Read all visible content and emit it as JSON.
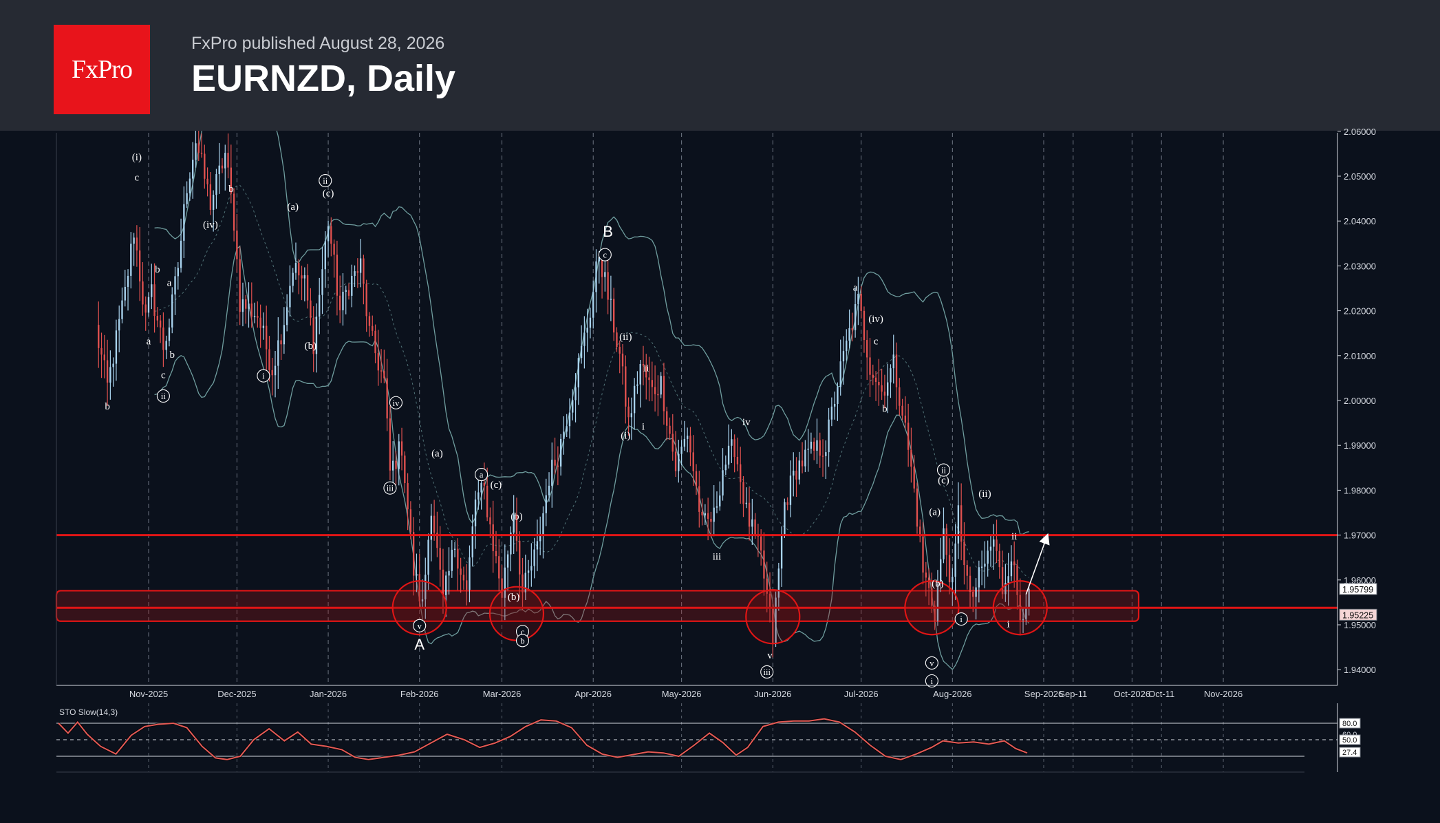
{
  "header": {
    "logo_text": "FxPro",
    "published": "FxPro published August 28, 2026",
    "title": "EURNZD, Daily"
  },
  "colors": {
    "background": "#0b111c",
    "header_bg": "#262a33",
    "brand_red": "#e8141b",
    "bull_candle": "#a9d3ee",
    "bear_candle": "#e1514f",
    "bands": "#6f9d9e",
    "level_line": "#e01515",
    "stochastic": "#e55a55"
  },
  "chart_data": [
    {
      "type": "candlestick",
      "title": "EURNZD, Daily",
      "y_range": [
        1.937,
        2.06
      ],
      "y_ticks": [
        "2.06000",
        "2.05000",
        "2.04000",
        "2.03000",
        "2.02000",
        "2.01000",
        "2.00000",
        "1.99000",
        "1.98000",
        "1.97000",
        "1.96000",
        "1.95000",
        "1.94000"
      ],
      "x_ticks": [
        "Nov-2025",
        "Dec-2025",
        "Jan-2026",
        "Feb-2026",
        "Mar-2026",
        "Apr-2026",
        "May-2026",
        "Jun-2026",
        "Jul-2026",
        "Aug-2026",
        "Sep-2026",
        "Sep-11",
        "Oct-2026",
        "Oct-11",
        "Nov-2026"
      ],
      "price_labels": [
        {
          "text": "1.95799",
          "value": 1.95799
        },
        {
          "text": "1.95225",
          "value": 1.95225
        }
      ],
      "horizontal_levels": [
        1.97,
        1.9538
      ],
      "support_zone": [
        1.9508,
        1.9576
      ],
      "close_path": [
        {
          "date": "2025-10-14",
          "close": 2.016
        },
        {
          "date": "2025-10-18",
          "close": 2.003
        },
        {
          "date": "2025-10-24",
          "close": 2.024
        },
        {
          "date": "2025-10-27",
          "close": 2.038
        },
        {
          "date": "2025-10-31",
          "close": 2.018
        },
        {
          "date": "2025-11-02",
          "close": 2.024
        },
        {
          "date": "2025-11-06",
          "close": 2.012
        },
        {
          "date": "2025-11-08",
          "close": 2.017
        },
        {
          "date": "2025-11-11",
          "close": 2.03
        },
        {
          "date": "2025-11-14",
          "close": 2.048
        },
        {
          "date": "2025-11-17",
          "close": 2.058
        },
        {
          "date": "2025-11-22",
          "close": 2.044
        },
        {
          "date": "2025-11-27",
          "close": 2.055
        },
        {
          "date": "2025-11-30",
          "close": 2.04
        },
        {
          "date": "2025-12-02",
          "close": 2.022
        },
        {
          "date": "2025-12-08",
          "close": 2.019
        },
        {
          "date": "2025-12-13",
          "close": 2.007
        },
        {
          "date": "2025-12-17",
          "close": 2.018
        },
        {
          "date": "2025-12-20",
          "close": 2.03
        },
        {
          "date": "2025-12-24",
          "close": 2.026
        },
        {
          "date": "2025-12-27",
          "close": 2.013
        },
        {
          "date": "2026-01-01",
          "close": 2.04
        },
        {
          "date": "2026-01-05",
          "close": 2.02
        },
        {
          "date": "2026-01-08",
          "close": 2.026
        },
        {
          "date": "2026-01-12",
          "close": 2.03
        },
        {
          "date": "2026-01-15",
          "close": 2.015
        },
        {
          "date": "2026-01-20",
          "close": 2.004
        },
        {
          "date": "2026-01-22",
          "close": 1.984
        },
        {
          "date": "2026-01-26",
          "close": 1.99
        },
        {
          "date": "2026-01-30",
          "close": 1.962
        },
        {
          "date": "2026-02-02",
          "close": 1.954
        },
        {
          "date": "2026-02-05",
          "close": 1.977
        },
        {
          "date": "2026-02-09",
          "close": 1.955
        },
        {
          "date": "2026-02-13",
          "close": 1.968
        },
        {
          "date": "2026-02-17",
          "close": 1.957
        },
        {
          "date": "2026-02-20",
          "close": 1.978
        },
        {
          "date": "2026-02-23",
          "close": 1.98
        },
        {
          "date": "2026-02-26",
          "close": 1.968
        },
        {
          "date": "2026-03-01",
          "close": 1.957
        },
        {
          "date": "2026-03-05",
          "close": 1.976
        },
        {
          "date": "2026-03-08",
          "close": 1.957
        },
        {
          "date": "2026-03-13",
          "close": 1.967
        },
        {
          "date": "2026-03-17",
          "close": 1.983
        },
        {
          "date": "2026-03-20",
          "close": 1.988
        },
        {
          "date": "2026-03-26",
          "close": 2.005
        },
        {
          "date": "2026-03-31",
          "close": 2.02
        },
        {
          "date": "2026-04-03",
          "close": 2.033
        },
        {
          "date": "2026-04-07",
          "close": 2.02
        },
        {
          "date": "2026-04-10",
          "close": 2.01
        },
        {
          "date": "2026-04-13",
          "close": 1.995
        },
        {
          "date": "2026-04-17",
          "close": 2.008
        },
        {
          "date": "2026-04-21",
          "close": 2.002
        },
        {
          "date": "2026-04-24",
          "close": 2.004
        },
        {
          "date": "2026-04-29",
          "close": 1.985
        },
        {
          "date": "2026-05-03",
          "close": 1.993
        },
        {
          "date": "2026-05-08",
          "close": 1.972
        },
        {
          "date": "2026-05-12",
          "close": 1.974
        },
        {
          "date": "2026-05-15",
          "close": 1.985
        },
        {
          "date": "2026-05-19",
          "close": 1.99
        },
        {
          "date": "2026-05-23",
          "close": 1.975
        },
        {
          "date": "2026-05-28",
          "close": 1.965
        },
        {
          "date": "2026-06-01",
          "close": 1.947
        },
        {
          "date": "2026-06-05",
          "close": 1.977
        },
        {
          "date": "2026-06-09",
          "close": 1.985
        },
        {
          "date": "2026-06-13",
          "close": 1.988
        },
        {
          "date": "2026-06-19",
          "close": 1.99
        },
        {
          "date": "2026-06-23",
          "close": 2.004
        },
        {
          "date": "2026-06-27",
          "close": 2.015
        },
        {
          "date": "2026-06-30",
          "close": 2.022
        },
        {
          "date": "2026-07-04",
          "close": 2.008
        },
        {
          "date": "2026-07-08",
          "close": 2.002
        },
        {
          "date": "2026-07-12",
          "close": 2.008
        },
        {
          "date": "2026-07-15",
          "close": 1.998
        },
        {
          "date": "2026-07-19",
          "close": 1.98
        },
        {
          "date": "2026-07-22",
          "close": 1.962
        },
        {
          "date": "2026-07-26",
          "close": 1.953
        },
        {
          "date": "2026-07-29",
          "close": 1.97
        },
        {
          "date": "2026-08-01",
          "close": 1.958
        },
        {
          "date": "2026-08-03",
          "close": 1.975
        },
        {
          "date": "2026-08-07",
          "close": 1.955
        },
        {
          "date": "2026-08-11",
          "close": 1.962
        },
        {
          "date": "2026-08-15",
          "close": 1.969
        },
        {
          "date": "2026-08-18",
          "close": 1.958
        },
        {
          "date": "2026-08-21",
          "close": 1.966
        },
        {
          "date": "2026-08-24",
          "close": 1.952
        },
        {
          "date": "2026-08-27",
          "close": 1.958
        }
      ],
      "wave_labels": [
        {
          "text": "b",
          "date": "2025-10-18",
          "price": 1.998
        },
        {
          "text": "(i)",
          "date": "2025-10-28",
          "price": 2.0535
        },
        {
          "text": "c",
          "date": "2025-10-28",
          "price": 2.049
        },
        {
          "text": "b",
          "date": "2025-11-04",
          "price": 2.0285
        },
        {
          "text": "a",
          "date": "2025-11-01",
          "price": 2.0125
        },
        {
          "text": "a",
          "date": "2025-11-08",
          "price": 2.0255
        },
        {
          "text": "b",
          "date": "2025-11-09",
          "price": 2.0095
        },
        {
          "text": "c",
          "date": "2025-11-06",
          "price": 2.005
        },
        {
          "text": "(iv)",
          "date": "2025-11-22",
          "price": 2.0385
        },
        {
          "text": "b",
          "date": "2025-11-29",
          "price": 2.0465
        },
        {
          "text": "(a)",
          "date": "2025-12-20",
          "price": 2.0425
        },
        {
          "text": "(c)",
          "date": "2026-01-01",
          "price": 2.0455
        },
        {
          "text": "(b)",
          "date": "2025-12-26",
          "price": 2.0115
        },
        {
          "text": "(a)",
          "date": "2026-02-07",
          "price": 1.9875
        },
        {
          "text": "(c)",
          "date": "2026-02-27",
          "price": 1.9805
        },
        {
          "text": "(b)",
          "date": "2026-03-06",
          "price": 1.9735
        },
        {
          "text": "(b)",
          "date": "2026-03-05",
          "price": 1.9555
        },
        {
          "text": "B",
          "date": "2026-04-06",
          "price": 2.0365
        },
        {
          "text": "(ii)",
          "date": "2026-04-12",
          "price": 2.0135
        },
        {
          "text": "ii",
          "date": "2026-04-19",
          "price": 2.0065
        },
        {
          "text": "(i)",
          "date": "2026-04-12",
          "price": 1.9915
        },
        {
          "text": "i",
          "date": "2026-04-18",
          "price": 1.9935
        },
        {
          "text": "iii",
          "date": "2026-05-13",
          "price": 1.9645
        },
        {
          "text": "iv",
          "date": "2026-05-23",
          "price": 1.9945
        },
        {
          "text": "v",
          "date": "2026-05-31",
          "price": 1.9425
        },
        {
          "text": "a",
          "date": "2026-06-29",
          "price": 2.0245
        },
        {
          "text": "(iv)",
          "date": "2026-07-06",
          "price": 2.0175
        },
        {
          "text": "c",
          "date": "2026-07-06",
          "price": 2.0125
        },
        {
          "text": "b",
          "date": "2026-07-09",
          "price": 1.9975
        },
        {
          "text": "(a)",
          "date": "2026-07-26",
          "price": 1.9745
        },
        {
          "text": "(c)",
          "date": "2026-07-29",
          "price": 1.9815
        },
        {
          "text": "(b)",
          "date": "2026-07-27",
          "price": 1.9585
        },
        {
          "text": "(ii)",
          "date": "2026-08-12",
          "price": 1.9785
        },
        {
          "text": "ii",
          "date": "2026-08-22",
          "price": 1.969
        },
        {
          "text": "i",
          "date": "2026-08-20",
          "price": 1.9495
        },
        {
          "text": "A",
          "date": "2026-02-01",
          "price": 1.9445
        }
      ],
      "circled_labels": [
        {
          "text": "ii",
          "date": "2025-11-06",
          "price": 2.001
        },
        {
          "text": "i",
          "date": "2025-12-10",
          "price": 2.0055
        },
        {
          "text": "ii",
          "date": "2025-12-31",
          "price": 2.049
        },
        {
          "text": "iv",
          "date": "2026-01-24",
          "price": 1.9995
        },
        {
          "text": "iii",
          "date": "2026-01-22",
          "price": 1.9805
        },
        {
          "text": "v",
          "date": "2026-02-01",
          "price": 1.9498
        },
        {
          "text": "a",
          "date": "2026-02-22",
          "price": 1.9835
        },
        {
          "text": "c",
          "date": "2026-03-08",
          "price": 1.9485
        },
        {
          "text": "b",
          "date": "2026-03-08",
          "price": 1.9465
        },
        {
          "text": "c",
          "date": "2026-04-05",
          "price": 2.0325
        },
        {
          "text": "iii",
          "date": "2026-05-30",
          "price": 1.9395
        },
        {
          "text": "ii",
          "date": "2026-07-29",
          "price": 1.9845
        },
        {
          "text": "v",
          "date": "2026-07-25",
          "price": 1.9415
        },
        {
          "text": "i",
          "date": "2026-07-25",
          "price": 1.9375
        },
        {
          "text": "i",
          "date": "2026-08-04",
          "price": 1.9513
        }
      ],
      "highlight_circles": [
        {
          "date": "2026-02-01",
          "price": 1.9538
        },
        {
          "date": "2026-03-06",
          "price": 1.9525
        },
        {
          "date": "2026-06-01",
          "price": 1.9518
        },
        {
          "date": "2026-07-25",
          "price": 1.9538
        },
        {
          "date": "2026-08-24",
          "price": 1.9538
        }
      ],
      "projection_arrow": {
        "from": {
          "date": "2026-08-26",
          "price": 1.9568
        },
        "to": {
          "date": "2026-09-02",
          "price": 1.9695
        }
      }
    },
    {
      "type": "line",
      "title": "STO Slow(14,3)",
      "y_range": [
        0,
        100
      ],
      "levels": [
        80,
        50,
        20
      ],
      "value_labels": [
        "80.0",
        "60.0",
        "50.0",
        "27.4"
      ],
      "series": [
        {
          "values": [
            [
              0,
              80
            ],
            [
              5,
              62
            ],
            [
              10,
              82
            ],
            [
              15,
              60
            ],
            [
              22,
              38
            ],
            [
              30,
              24
            ],
            [
              38,
              58
            ],
            [
              45,
              74
            ],
            [
              52,
              78
            ],
            [
              60,
              80
            ],
            [
              67,
              72
            ],
            [
              75,
              38
            ],
            [
              82,
              17
            ],
            [
              88,
              14
            ],
            [
              95,
              20
            ],
            [
              102,
              50
            ],
            [
              110,
              70
            ],
            [
              118,
              48
            ],
            [
              125,
              64
            ],
            [
              132,
              42
            ],
            [
              140,
              38
            ],
            [
              148,
              32
            ],
            [
              155,
              18
            ],
            [
              162,
              14
            ],
            [
              170,
              18
            ],
            [
              178,
              22
            ],
            [
              186,
              28
            ],
            [
              195,
              45
            ],
            [
              203,
              60
            ],
            [
              212,
              50
            ],
            [
              220,
              36
            ],
            [
              228,
              44
            ],
            [
              236,
              56
            ],
            [
              244,
              74
            ],
            [
              252,
              86
            ],
            [
              260,
              84
            ],
            [
              268,
              72
            ],
            [
              276,
              40
            ],
            [
              284,
              24
            ],
            [
              292,
              18
            ],
            [
              300,
              23
            ],
            [
              308,
              28
            ],
            [
              316,
              26
            ],
            [
              324,
              20
            ],
            [
              332,
              40
            ],
            [
              340,
              62
            ],
            [
              347,
              45
            ],
            [
              354,
              22
            ],
            [
              360,
              36
            ],
            [
              368,
              74
            ],
            [
              376,
              82
            ],
            [
              384,
              84
            ],
            [
              392,
              84
            ],
            [
              400,
              88
            ],
            [
              408,
              82
            ],
            [
              416,
              64
            ],
            [
              424,
              40
            ],
            [
              432,
              20
            ],
            [
              440,
              14
            ],
            [
              448,
              24
            ],
            [
              456,
              36
            ],
            [
              462,
              48
            ],
            [
              470,
              44
            ],
            [
              478,
              46
            ],
            [
              486,
              42
            ],
            [
              494,
              48
            ],
            [
              500,
              34
            ],
            [
              506,
              26
            ]
          ]
        }
      ]
    }
  ]
}
